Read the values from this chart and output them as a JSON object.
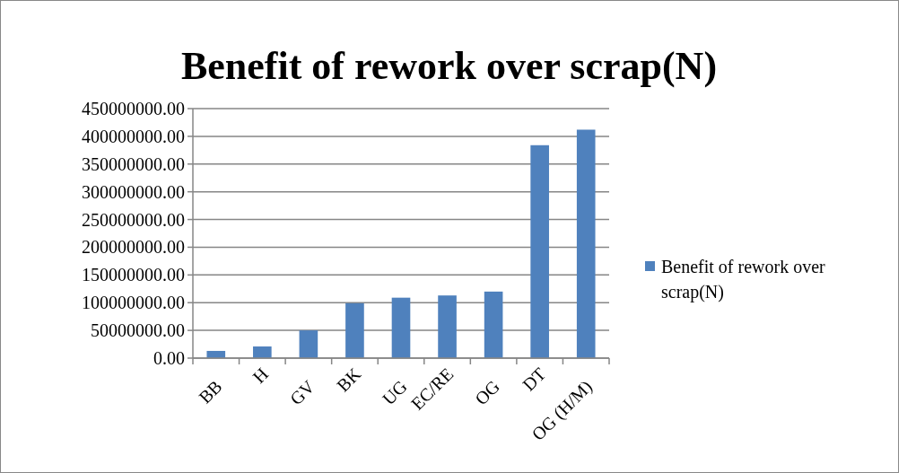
{
  "chart_data": {
    "type": "bar",
    "title": "Benefit of rework over scrap(N)",
    "categories": [
      "BB",
      "H",
      "GV",
      "BK",
      "UG",
      "EC/RE",
      "OG",
      "DT",
      "OG (H/M)"
    ],
    "series": [
      {
        "name": "Benefit of rework over scrap(N)",
        "color": "#4f81bd",
        "values": [
          13000000,
          21000000,
          50000000,
          99000000,
          109000000,
          113000000,
          120000000,
          384000000,
          412000000
        ]
      }
    ],
    "ylim": [
      0,
      450000000
    ],
    "yticks": [
      {
        "value": 0,
        "label": "0.00"
      },
      {
        "value": 50000000,
        "label": "50000000.00"
      },
      {
        "value": 100000000,
        "label": "100000000.00"
      },
      {
        "value": 150000000,
        "label": "150000000.00"
      },
      {
        "value": 200000000,
        "label": "200000000.00"
      },
      {
        "value": 250000000,
        "label": "250000000.00"
      },
      {
        "value": 300000000,
        "label": "300000000.00"
      },
      {
        "value": 350000000,
        "label": "350000000.00"
      },
      {
        "value": 400000000,
        "label": "400000000.00"
      },
      {
        "value": 450000000,
        "label": "450000000.00"
      }
    ],
    "grid": "y",
    "legend": "right"
  }
}
